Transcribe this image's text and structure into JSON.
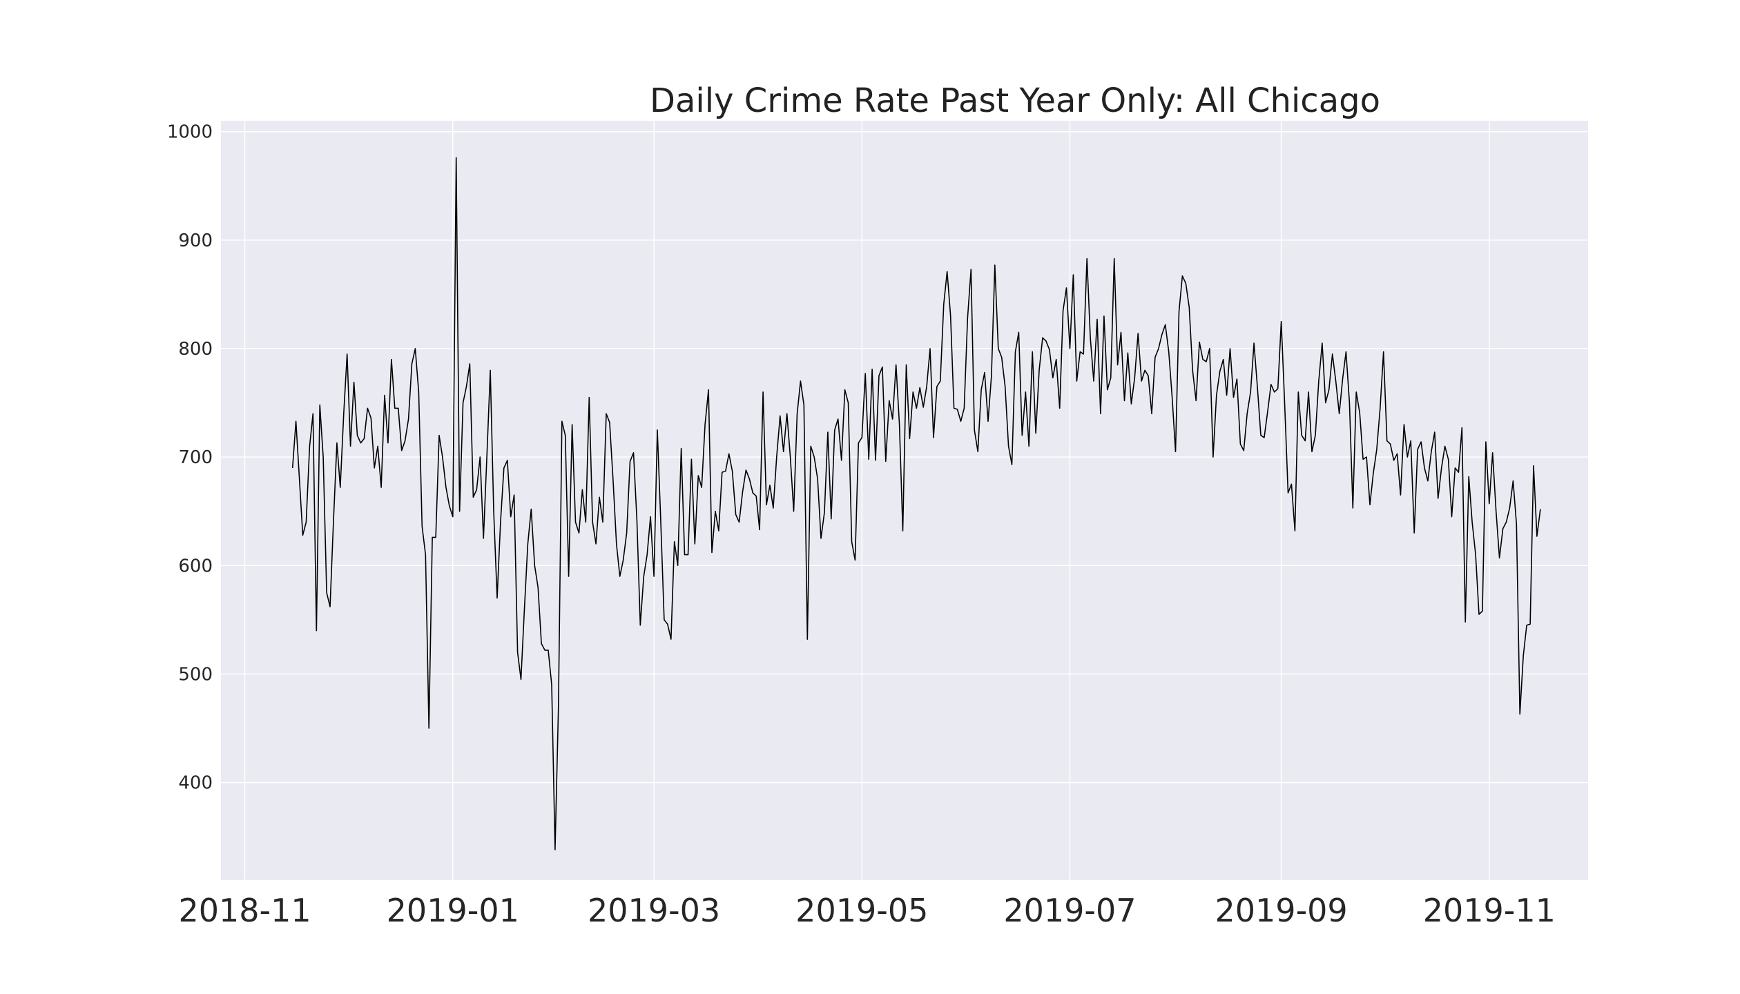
{
  "chart_data": {
    "type": "line",
    "title": "Daily Crime Rate Past Year Only: All Chicago",
    "xlabel": "",
    "ylabel": "",
    "xlim": [
      "2018-10-25",
      "2019-11-30"
    ],
    "ylim": [
      310,
      1010
    ],
    "grid": true,
    "background_color": "#eaeaf2",
    "grid_color": "#ffffff",
    "line_color": "#000000",
    "x_ticks": [
      "2018-11",
      "2019-01",
      "2019-03",
      "2019-05",
      "2019-07",
      "2019-09",
      "2019-11"
    ],
    "y_ticks": [
      400,
      500,
      600,
      700,
      800,
      900,
      1000
    ],
    "series": [
      {
        "x_start": "2018-11-15",
        "x_step_days": 1,
        "values": [
          690,
          733,
          680,
          628,
          640,
          710,
          740,
          540,
          748,
          700,
          575,
          562,
          640,
          713,
          672,
          740,
          795,
          710,
          769,
          720,
          713,
          717,
          745,
          736,
          690,
          710,
          672,
          757,
          713,
          790,
          745,
          745,
          706,
          715,
          735,
          786,
          800,
          760,
          636,
          610,
          450,
          626,
          626,
          720,
          700,
          672,
          655,
          645,
          976,
          650,
          750,
          765,
          786,
          663,
          670,
          700,
          625,
          700,
          780,
          650,
          570,
          640,
          690,
          697,
          645,
          665,
          520,
          495,
          560,
          620,
          652,
          600,
          580,
          528,
          522,
          522,
          490,
          338,
          470,
          733,
          720,
          590,
          730,
          640,
          630,
          670,
          640,
          755,
          640,
          620,
          663,
          640,
          740,
          732,
          680,
          620,
          590,
          605,
          630,
          696,
          704,
          642,
          545,
          590,
          610,
          645,
          590,
          725,
          640,
          550,
          546,
          532,
          622,
          600,
          708,
          610,
          610,
          698,
          620,
          683,
          672,
          730,
          762,
          612,
          650,
          632,
          686,
          687,
          703,
          687,
          647,
          640,
          668,
          688,
          680,
          667,
          664,
          633,
          760,
          656,
          674,
          653,
          700,
          738,
          705,
          740,
          700,
          650,
          740,
          770,
          748,
          532,
          710,
          700,
          680,
          625,
          649,
          723,
          643,
          725,
          735,
          697,
          762,
          750,
          622,
          605,
          713,
          718,
          777,
          698,
          781,
          697,
          775,
          783,
          696,
          752,
          735,
          785,
          730,
          632,
          785,
          717,
          760,
          745,
          764,
          746,
          765,
          800,
          718,
          765,
          770,
          841,
          871,
          830,
          745,
          744,
          733,
          745,
          828,
          873,
          725,
          705,
          762,
          778,
          733,
          775,
          877,
          800,
          792,
          765,
          710,
          693,
          797,
          815,
          720,
          760,
          710,
          797,
          722,
          780,
          810,
          807,
          799,
          773,
          790,
          745,
          835,
          856,
          800,
          868,
          770,
          797,
          795,
          883,
          810,
          770,
          827,
          740,
          830,
          762,
          773,
          883,
          785,
          815,
          752,
          796,
          749,
          773,
          814,
          770,
          780,
          775,
          740,
          792,
          800,
          813,
          822,
          797,
          755,
          705,
          834,
          867,
          860,
          838,
          780,
          752,
          806,
          790,
          788,
          800,
          700,
          757,
          779,
          790,
          757,
          800,
          755,
          772,
          712,
          706,
          740,
          760,
          805,
          765,
          720,
          718,
          742,
          767,
          760,
          763,
          825,
          750,
          667,
          675,
          632,
          760,
          720,
          715,
          760,
          705,
          720,
          770,
          805,
          750,
          762,
          795,
          770,
          740,
          772,
          797,
          750,
          653,
          760,
          741,
          698,
          700,
          656,
          685,
          707,
          745,
          797,
          715,
          712,
          697,
          703,
          665,
          730,
          700,
          715,
          630,
          707,
          714,
          690,
          678,
          705,
          723,
          662,
          690,
          710,
          698,
          645,
          690,
          686,
          727,
          548,
          682,
          640,
          610,
          555,
          558,
          714,
          657,
          704,
          650,
          607,
          634,
          640,
          653,
          678,
          638,
          463,
          517,
          545,
          546,
          692,
          627,
          652
        ]
      }
    ]
  }
}
